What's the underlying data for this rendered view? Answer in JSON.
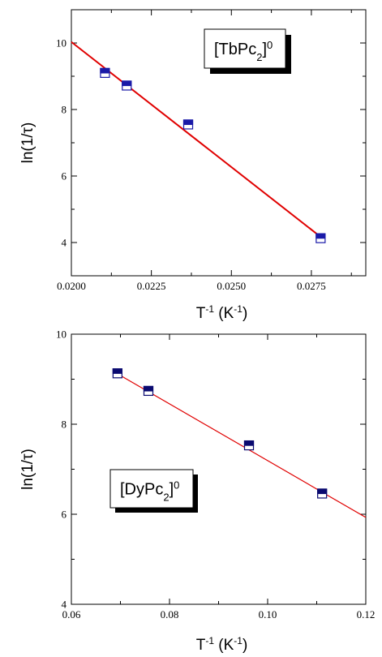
{
  "chart_data": [
    {
      "type": "scatter",
      "title": "",
      "annotation": {
        "label": "[TbPc",
        "subscript": "2",
        "superscript": "0",
        "close": "]"
      },
      "xlabel": {
        "base": "T",
        "sup": "-1",
        "unit": " (K",
        "unit_sup": "-1",
        "end": ")"
      },
      "ylabel": "ln(1/τ)",
      "xlim": [
        0.02,
        0.0292
      ],
      "ylim": [
        3.0,
        11.0
      ],
      "xticks": [
        "0.0200",
        "0.0225",
        "0.0250",
        "0.0275"
      ],
      "yticks": [
        "4",
        "6",
        "8",
        "10"
      ],
      "series": [
        {
          "x": [
            0.02105,
            0.02173,
            0.02365,
            0.02779
          ],
          "y": [
            9.1,
            8.72,
            7.55,
            4.13
          ]
        }
      ],
      "fit_line": {
        "x": [
          0.02,
          0.02779
        ],
        "y": [
          10.03,
          4.17
        ]
      },
      "marker_fill": "#1a1aa8",
      "line_color": "#e00000",
      "grid": false
    },
    {
      "type": "scatter",
      "title": "",
      "annotation": {
        "label": "[DyPc",
        "subscript": "2",
        "superscript": "0",
        "close": "]"
      },
      "xlabel": {
        "base": "T",
        "sup": "-1",
        "unit": " (K",
        "unit_sup": "-1",
        "end": ")"
      },
      "ylabel": "ln(1/τ)",
      "xlim": [
        0.06,
        0.12
      ],
      "ylim": [
        4.0,
        10.0
      ],
      "xticks": [
        "0.06",
        "0.08",
        "0.10",
        "0.12"
      ],
      "yticks": [
        "4",
        "6",
        "8",
        "10"
      ],
      "series": [
        {
          "x": [
            0.0694,
            0.0757,
            0.0962,
            0.1111
          ],
          "y": [
            9.13,
            8.74,
            7.53,
            6.46
          ]
        }
      ],
      "fit_line": {
        "x": [
          0.0694,
          0.12
        ],
        "y": [
          9.12,
          5.93
        ]
      },
      "marker_fill": "#0a0a70",
      "line_color": "#e00000",
      "grid": false
    }
  ]
}
